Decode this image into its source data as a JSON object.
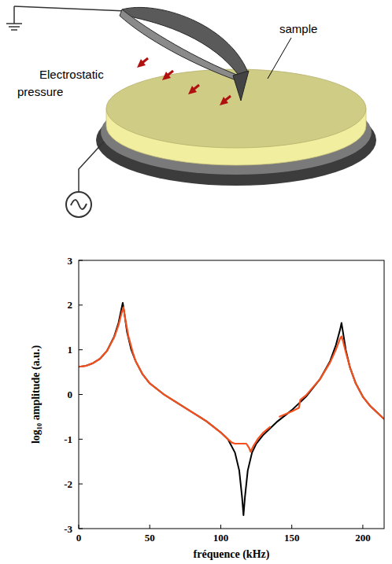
{
  "diagram": {
    "sample_label": "sample",
    "force_label": "Electrostatic pressure"
  },
  "chart_data": {
    "type": "line",
    "x_label": "fréquence (kHz)",
    "y_label": "log₁₀ amplitude (a.u.)",
    "xlim": [
      0,
      215
    ],
    "ylim": [
      -3,
      3
    ],
    "xticks": [
      0,
      50,
      100,
      150,
      200
    ],
    "yticks": [
      -3,
      -2,
      -1,
      0,
      1,
      2,
      3
    ],
    "grid": false,
    "series": [
      {
        "color": "#000000",
        "x": [
          0,
          5,
          10,
          15,
          20,
          25,
          28,
          30,
          31,
          32,
          34,
          37,
          40,
          45,
          50,
          60,
          70,
          80,
          90,
          100,
          105,
          110,
          113,
          115,
          116,
          117,
          119,
          122,
          125,
          130,
          140,
          150,
          160,
          170,
          177,
          181,
          184,
          185,
          186,
          188,
          191,
          195,
          200,
          205,
          210,
          215
        ],
        "values": [
          0.62,
          0.64,
          0.7,
          0.8,
          0.98,
          1.3,
          1.6,
          1.9,
          2.05,
          1.85,
          1.4,
          1.0,
          0.75,
          0.45,
          0.25,
          0.0,
          -0.2,
          -0.4,
          -0.6,
          -0.85,
          -1.0,
          -1.3,
          -1.7,
          -2.3,
          -2.7,
          -2.3,
          -1.7,
          -1.3,
          -1.1,
          -0.9,
          -0.6,
          -0.35,
          -0.05,
          0.35,
          0.75,
          1.1,
          1.45,
          1.6,
          1.4,
          1.0,
          0.6,
          0.25,
          -0.05,
          -0.25,
          -0.4,
          -0.55
        ]
      },
      {
        "color": "#f4511e",
        "x": [
          0,
          5,
          10,
          15,
          20,
          25,
          28,
          30,
          31.5,
          33,
          35,
          38,
          40,
          45,
          50,
          60,
          70,
          80,
          90,
          100,
          105,
          108,
          110,
          118,
          120,
          121,
          123,
          126,
          130,
          135,
          138,
          141,
          150,
          155,
          156,
          160,
          170,
          177,
          181,
          184,
          185,
          186,
          188,
          191,
          195,
          200,
          205,
          210,
          215
        ],
        "values": [
          0.62,
          0.64,
          0.7,
          0.8,
          0.98,
          1.28,
          1.55,
          1.8,
          1.95,
          1.65,
          1.3,
          0.95,
          0.75,
          0.45,
          0.25,
          0.0,
          -0.2,
          -0.4,
          -0.6,
          -0.85,
          -1.0,
          -1.08,
          -1.1,
          -1.1,
          -1.2,
          -1.28,
          -1.15,
          -1.0,
          -0.85,
          -0.72,
          null,
          -0.5,
          -0.38,
          -0.3,
          -0.12,
          -0.02,
          0.35,
          0.72,
          1.0,
          1.25,
          1.3,
          1.2,
          0.95,
          0.6,
          0.25,
          -0.05,
          -0.25,
          -0.4,
          -0.55
        ]
      }
    ]
  }
}
